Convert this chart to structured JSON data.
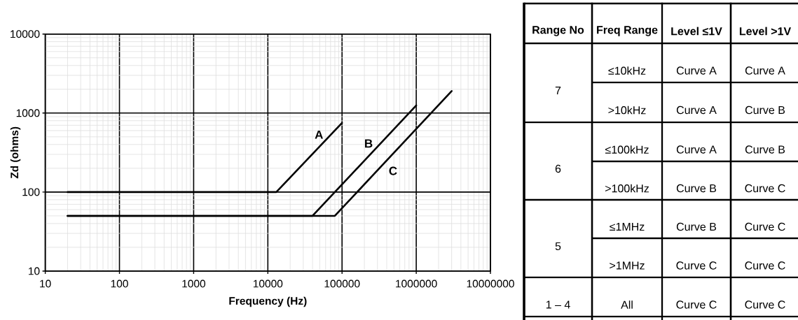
{
  "chart_data": [
    {
      "type": "line",
      "xlabel": "Frequency (Hz)",
      "ylabel": "Zd (ohms)",
      "log": "xy",
      "xlim": [
        10,
        10000000
      ],
      "ylim": [
        10,
        10000
      ],
      "xticks": [
        10,
        100,
        1000,
        10000,
        100000,
        1000000,
        10000000
      ],
      "yticks": [
        10,
        100,
        1000,
        10000
      ],
      "grid": true,
      "series": [
        {
          "name": "A",
          "color": "#000000",
          "x": [
            20,
            13000,
            100000
          ],
          "values": [
            100,
            100,
            750
          ]
        },
        {
          "name": "B",
          "color": "#000000",
          "x": [
            20,
            40000,
            1000000
          ],
          "values": [
            50,
            50,
            1250
          ]
        },
        {
          "name": "C",
          "color": "#000000",
          "x": [
            20,
            80000,
            3000000
          ],
          "values": [
            50,
            50,
            1900
          ]
        }
      ]
    },
    {
      "type": "other",
      "annotations": [
        "Range No",
        "Freq Range",
        "Level ≤1V",
        "Level >1V",
        "7",
        "≤10kHz",
        "Curve A",
        "Curve A",
        ">10kHz",
        "Curve A",
        "Curve B",
        "6",
        "≤100kHz",
        "Curve A",
        "Curve B",
        ">100kHz",
        "Curve B",
        "Curve C",
        "5",
        "≤1MHz",
        "Curve B",
        "Curve C",
        ">1MHz",
        "Curve C",
        "Curve C",
        "1 – 4",
        "All",
        "Curve C",
        "Curve C"
      ]
    }
  ]
}
